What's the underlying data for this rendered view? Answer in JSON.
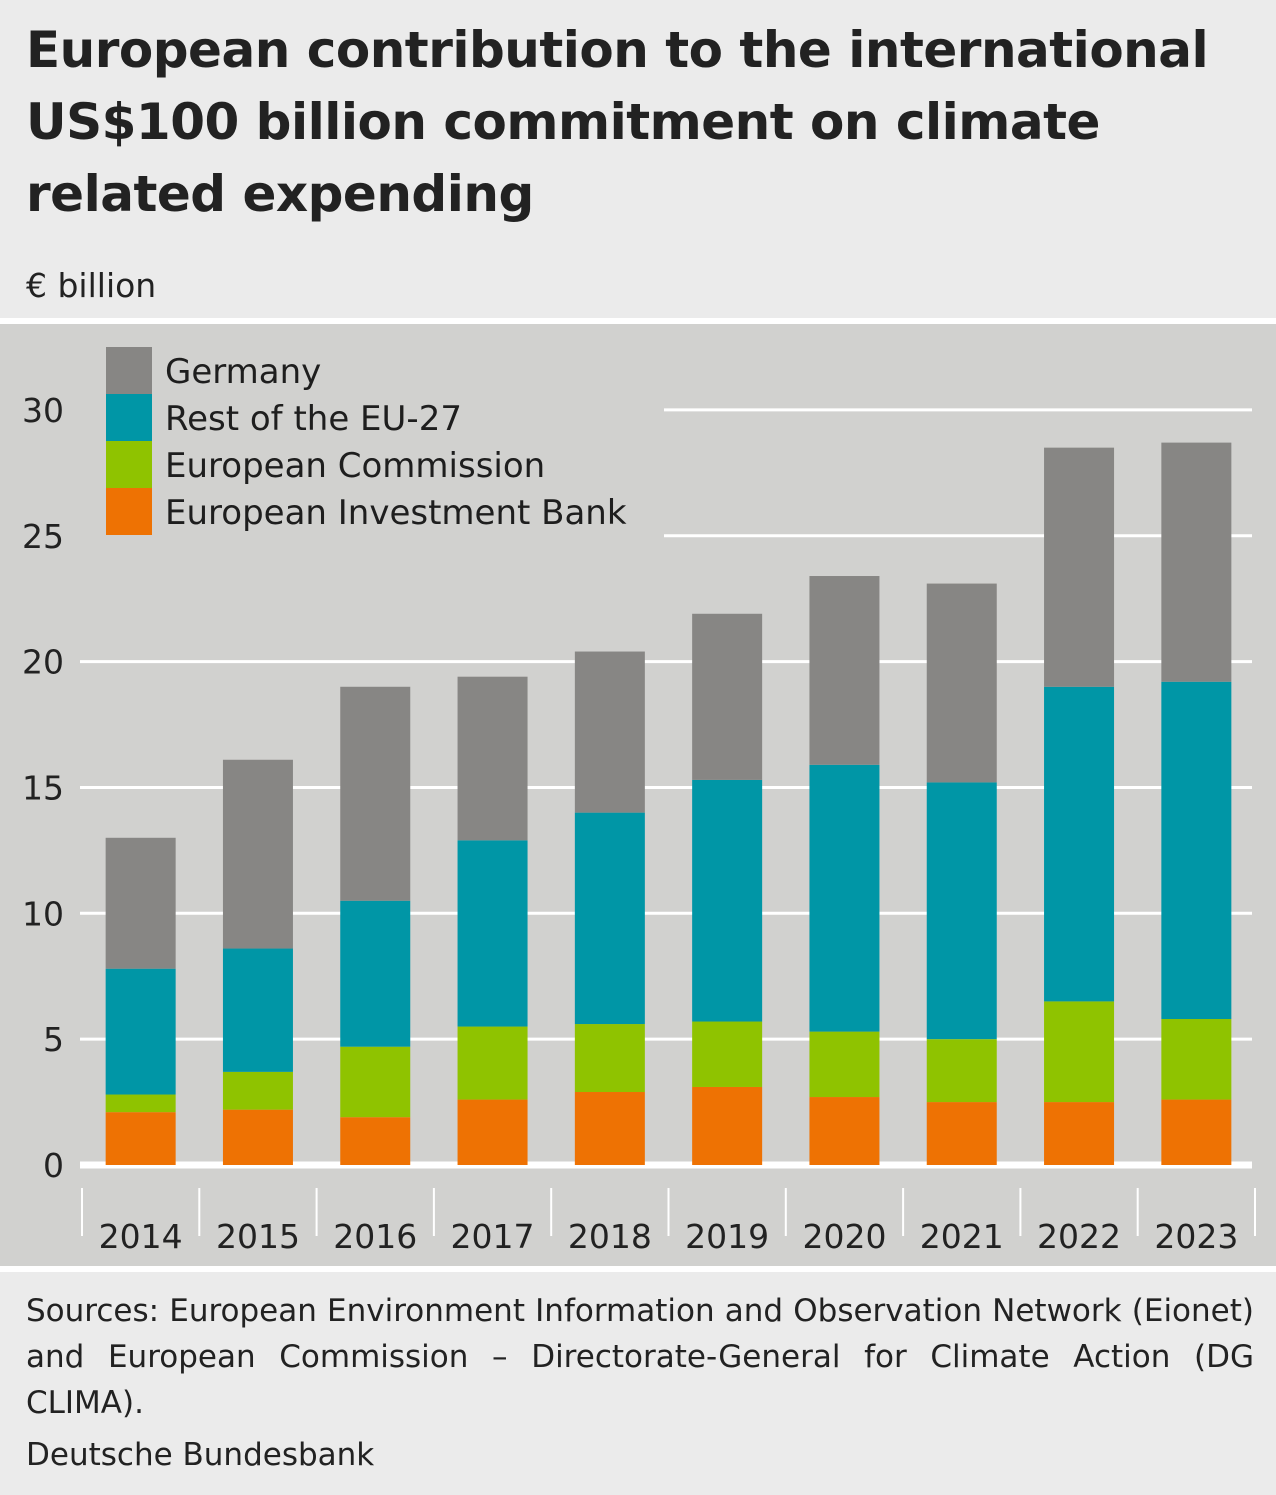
{
  "header": {
    "title": "European contribution to the international US$100 billion commitment on climate related expending",
    "unit": "€ billion"
  },
  "footer": {
    "sources": "Sources: European Environment Information and Observation Network (Eionet) and European Commission – Directorate-General for Climate Action (DG CLIMA).",
    "publisher": "Deutsche Bundesbank"
  },
  "chart_data": {
    "type": "bar",
    "stacked": true,
    "title": "European contribution to the international US$100 billion commitment on climate related expending",
    "ylabel": "€ billion",
    "xlabel": "",
    "ylim": [
      0,
      30
    ],
    "yticks": [
      0,
      5,
      10,
      15,
      20,
      25,
      30
    ],
    "grid": true,
    "legend_position": "top-left",
    "categories": [
      "2014",
      "2015",
      "2016",
      "2017",
      "2018",
      "2019",
      "2020",
      "2021",
      "2022",
      "2023"
    ],
    "series": [
      {
        "name": "European Investment Bank",
        "color": "#ee7203",
        "values": [
          2.1,
          2.2,
          1.9,
          2.6,
          2.9,
          3.1,
          2.7,
          2.5,
          2.5,
          2.6
        ]
      },
      {
        "name": "European Commission",
        "color": "#8fc300",
        "values": [
          0.7,
          1.5,
          2.8,
          2.9,
          2.7,
          2.6,
          2.6,
          2.5,
          4.0,
          3.2
        ]
      },
      {
        "name": "Rest of the EU-27",
        "color": "#0096a6",
        "values": [
          5.0,
          4.9,
          5.8,
          7.4,
          8.4,
          9.6,
          10.6,
          10.2,
          12.5,
          13.4
        ]
      },
      {
        "name": "Germany",
        "color": "#878684",
        "values": [
          5.2,
          7.5,
          8.5,
          6.5,
          6.4,
          6.6,
          7.5,
          7.9,
          9.5,
          9.5
        ]
      }
    ],
    "legend_order": [
      "Germany",
      "Rest of the EU-27",
      "European Commission",
      "European Investment Bank"
    ]
  }
}
